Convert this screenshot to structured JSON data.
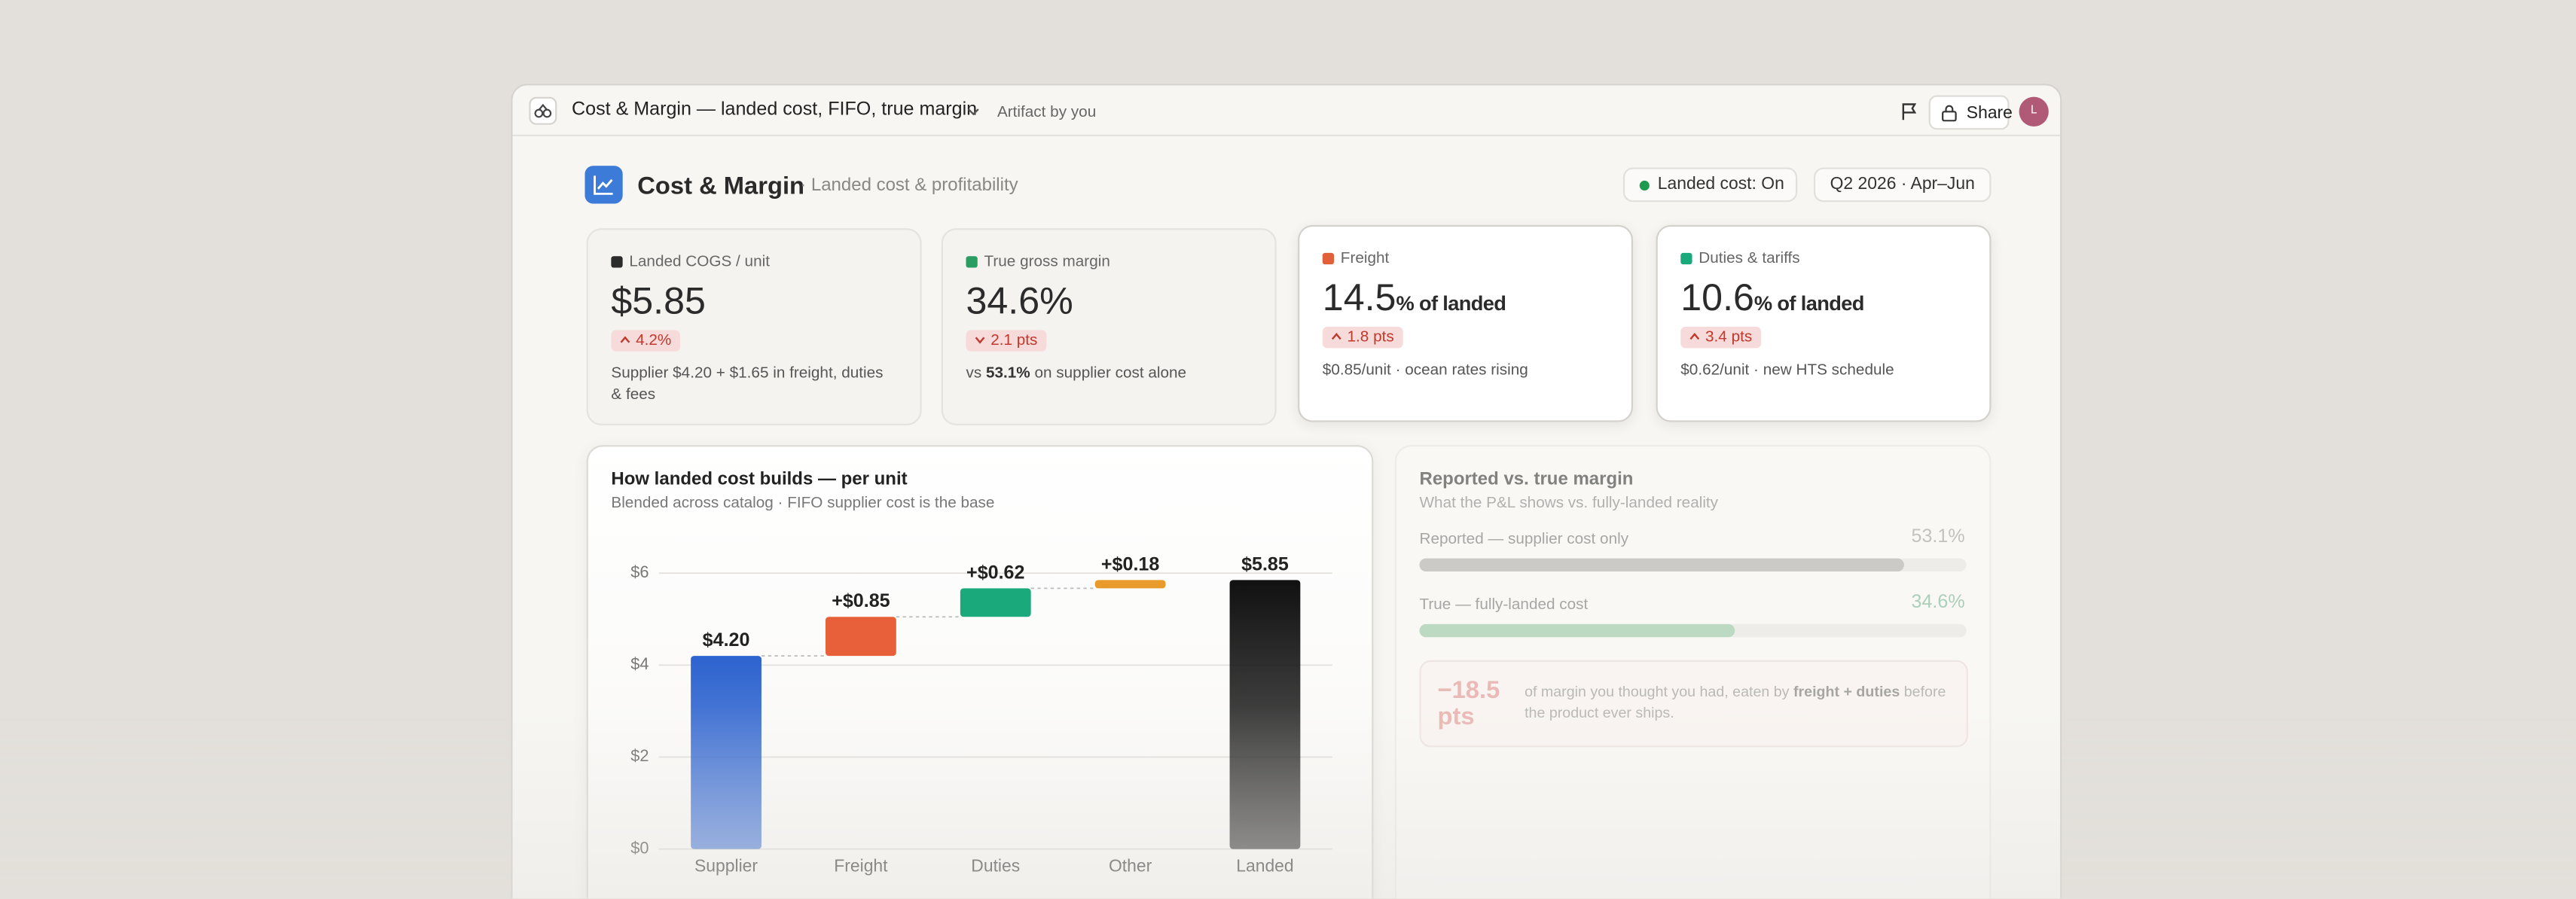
{
  "top_bar": {
    "title": "Cost & Margin — landed cost, FIFO, true margin",
    "byline": "Artifact by you",
    "share": "Share",
    "avatar": "L"
  },
  "header": {
    "title": "Cost & Margin",
    "subtitle": "· Landed cost & profitability",
    "status_pill": "Landed cost: On",
    "period_pill": "Q2 2026 · Apr–Jun"
  },
  "cards": [
    {
      "label": "Landed COGS / unit",
      "color": "#2b2b2b",
      "value": "$5.85",
      "delta": "4.2%",
      "delta_direction": "up",
      "note": [
        {
          "text": "Supplier $4.20 + $1.65 in freight, duties & fees"
        }
      ],
      "highlight": false
    },
    {
      "label": "True gross margin",
      "color": "#2a9d63",
      "value": "34.6%",
      "delta": "2.1 pts",
      "delta_direction": "down",
      "note": [
        {
          "text": "vs"
        },
        {
          "text": "53.1%",
          "bold": true
        },
        {
          "text": "on supplier cost alone"
        }
      ],
      "highlight": false
    },
    {
      "label": "Freight",
      "color": "#e0603a",
      "value": 14.5,
      "unit": "% of landed",
      "delta": "1.8 pts",
      "delta_direction": "up",
      "note": [
        {
          "text": "$0.85/unit · ocean rates rising"
        }
      ],
      "highlight": true
    },
    {
      "label": "Duties & tariffs",
      "color": "#1aa97a",
      "value": 10.6,
      "unit": "% of landed",
      "delta": "3.4 pts",
      "delta_direction": "up",
      "note": [
        {
          "text": "$0.62/unit · new HTS schedule"
        }
      ],
      "highlight": true
    }
  ],
  "chart_data": {
    "type": "waterfall",
    "title": "How landed cost builds — per unit",
    "subtitle": "Blended across catalog · FIFO supplier cost is the base",
    "categories": [
      "Supplier",
      "Freight",
      "Duties",
      "Other",
      "Landed"
    ],
    "values": [
      4.2,
      0.85,
      0.62,
      0.18,
      5.85
    ],
    "value_labels": [
      "$4.20",
      "+$0.85",
      "+$0.62",
      "+$0.18",
      "$5.85"
    ],
    "measure": [
      "absolute",
      "relative",
      "relative",
      "relative",
      "total"
    ],
    "colors": [
      "#2d63cf",
      "#e8603a",
      "#1aa97a",
      "#e89a2a",
      "#111111"
    ],
    "ylim": [
      0,
      6.4
    ],
    "yticks": [
      {
        "value": 0,
        "label": "$0"
      },
      {
        "value": 2,
        "label": "$2"
      },
      {
        "value": 4,
        "label": "$4"
      },
      {
        "value": 6,
        "label": "$6"
      }
    ],
    "grid": true
  },
  "margin_panel": {
    "title": "Reported vs. true margin",
    "subtitle": "What the P&L shows vs. fully-landed reality",
    "bar_max": 60,
    "rows": [
      {
        "label": "Reported — supplier cost only",
        "value": 53.1,
        "value_label": "53.1%",
        "color": "#a9a7a3",
        "label_color": "#9a9893"
      },
      {
        "label": "True — fully-landed cost",
        "value": 34.6,
        "value_label": "34.6%",
        "color": "#8cc49a",
        "label_color": "#6fb08a"
      }
    ],
    "callout": {
      "value": "−18.5 pts",
      "text": [
        {
          "text": "of margin you thought you had, eaten by"
        },
        {
          "text": "freight + duties",
          "bold": true
        },
        {
          "text": "before the product ever ships."
        }
      ]
    }
  }
}
